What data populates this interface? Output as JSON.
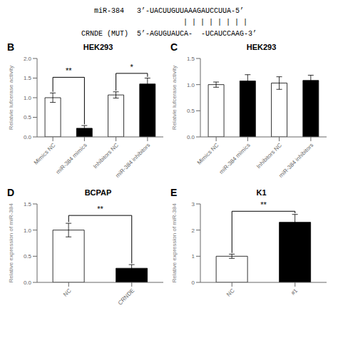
{
  "annotations": [
    "miR-384   3’-UACUUGUUAAAGAUCCUUA-5’",
    "| | | | | | | |",
    "CRNDE (MUT)  5’-AGUGUAUCA-  -UCAUCCAAG-3’"
  ],
  "chart_data": [
    {
      "type": "bar",
      "title": "HEK293",
      "ylabel": "Relatvie lufcerase activity",
      "categories": [
        "Mimics NC",
        "miR-384 mimics",
        "Inhibitors NC",
        "miR-384 inhibitors"
      ],
      "values": [
        1.0,
        0.22,
        1.07,
        1.35
      ],
      "errors": [
        0.12,
        0.07,
        0.08,
        0.15
      ],
      "colors": [
        "white",
        "black",
        "white",
        "black"
      ],
      "ylim": [
        0,
        2.0
      ],
      "yticks": [
        {
          "value": 0.0,
          "label": "0.0"
        },
        {
          "value": 0.5,
          "label": "0.5"
        },
        {
          "value": 1.0,
          "label": "1.0"
        },
        {
          "value": 1.5,
          "label": "1.5"
        },
        {
          "value": 2.0,
          "label": "2.0"
        }
      ],
      "grid": false,
      "annotations": [
        {
          "text": "B"
        },
        {
          "text": "**",
          "from": "Mimics NC",
          "to": "miR-384 mimics",
          "y": 1.52
        },
        {
          "text": "*",
          "from": "Inhibitors NC",
          "to": "miR-384 inhibitors",
          "y": 1.62
        }
      ]
    },
    {
      "type": "bar",
      "title": "HEK293",
      "ylabel": "Relatvie lufcerase activity",
      "categories": [
        "Mimics NC",
        "miR-384 mimics",
        "Inhibitors NC",
        "miR-384 inhibitors"
      ],
      "values": [
        1.0,
        1.07,
        1.03,
        1.08
      ],
      "errors": [
        0.05,
        0.12,
        0.12,
        0.1
      ],
      "colors": [
        "white",
        "black",
        "white",
        "black"
      ],
      "ylim": [
        0,
        1.5
      ],
      "yticks": [
        {
          "value": 0.0,
          "label": "0.0"
        },
        {
          "value": 0.5,
          "label": "0.5"
        },
        {
          "value": 1.0,
          "label": "1.0"
        },
        {
          "value": 1.5,
          "label": "1.5"
        }
      ],
      "grid": false,
      "annotations": [
        {
          "text": "C"
        }
      ]
    },
    {
      "type": "bar",
      "title": "BCPAP",
      "ylabel": "Relative expression of miR-384",
      "categories": [
        "NC",
        "CRNDE"
      ],
      "values": [
        1.0,
        0.27
      ],
      "errors": [
        0.13,
        0.07
      ],
      "colors": [
        "white",
        "black"
      ],
      "ylim": [
        0,
        1.5
      ],
      "yticks": [
        {
          "value": 0.0,
          "label": "0.0"
        },
        {
          "value": 0.5,
          "label": "0.5"
        },
        {
          "value": 1.0,
          "label": "1.0"
        },
        {
          "value": 1.5,
          "label": "1.5"
        }
      ],
      "grid": false,
      "annotations": [
        {
          "text": "D"
        },
        {
          "text": "**",
          "from": "NC",
          "to": "CRNDE",
          "y": 1.28
        }
      ]
    },
    {
      "type": "bar",
      "title": "K1",
      "ylabel": "Relative expression of miR-384",
      "categories": [
        "NC",
        "#1"
      ],
      "values": [
        1.0,
        2.3
      ],
      "errors": [
        0.08,
        0.3
      ],
      "colors": [
        "white",
        "black"
      ],
      "ylim": [
        0,
        3.0
      ],
      "yticks": [
        0,
        1,
        2,
        3
      ],
      "grid": false,
      "annotations": [
        {
          "text": "E"
        },
        {
          "text": "**",
          "from": "NC",
          "to": "#1",
          "y": 2.72
        }
      ]
    }
  ]
}
